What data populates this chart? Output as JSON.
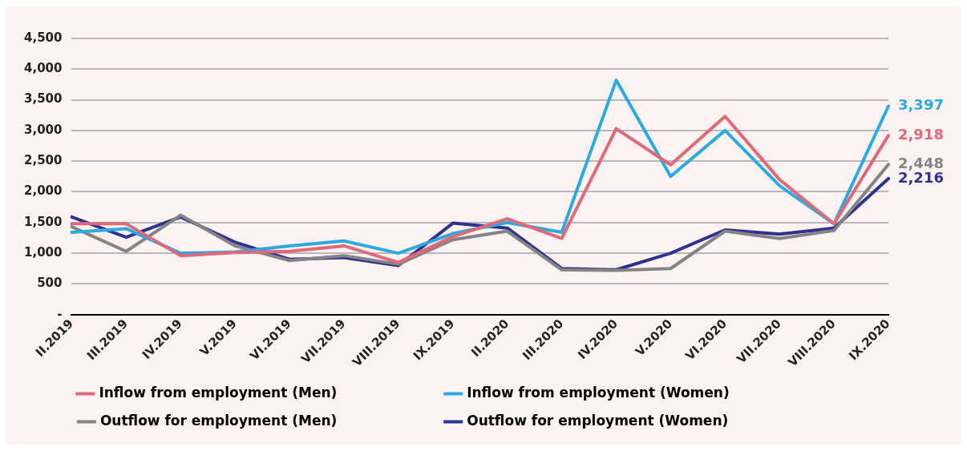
{
  "chart_data": {
    "type": "line",
    "categories": [
      "II.2019",
      "III.2019",
      "IV.2019",
      "V.2019",
      "VI.2019",
      "VII.2019",
      "VIII.2019",
      "IX.2019",
      "II.2020",
      "III.2020",
      "IV.2020",
      "V.2020",
      "VI.2020",
      "VII.2020",
      "VIII.2020",
      "IX.2020"
    ],
    "series": [
      {
        "name": "Inflow from employment (Men)",
        "color": "#e06878",
        "values": [
          1480,
          1480,
          960,
          1010,
          1030,
          1120,
          850,
          1270,
          1560,
          1240,
          3030,
          2440,
          3230,
          2200,
          1480,
          2918
        ],
        "value_labels": [
          null,
          null,
          null,
          null,
          null,
          null,
          null,
          null,
          null,
          null,
          null,
          null,
          null,
          null,
          null,
          "2,918"
        ]
      },
      {
        "name": "Inflow from employment (Women)",
        "color": "#29abe2",
        "values": [
          1340,
          1400,
          1000,
          1020,
          1120,
          1200,
          1000,
          1320,
          1500,
          1340,
          3820,
          2250,
          3000,
          2100,
          1480,
          3397
        ],
        "value_labels": [
          null,
          null,
          null,
          null,
          null,
          null,
          null,
          null,
          null,
          null,
          null,
          null,
          null,
          null,
          null,
          "3,397"
        ]
      },
      {
        "name": "Outflow for employment (Men)",
        "color": "#848484",
        "values": [
          1430,
          1030,
          1620,
          1120,
          880,
          960,
          820,
          1220,
          1360,
          730,
          720,
          750,
          1360,
          1240,
          1370,
          2448
        ],
        "value_labels": [
          null,
          null,
          null,
          null,
          null,
          null,
          null,
          null,
          null,
          null,
          null,
          null,
          null,
          null,
          null,
          "2,448"
        ]
      },
      {
        "name": "Outflow for employment (Women)",
        "color": "#2e3192",
        "values": [
          1590,
          1260,
          1590,
          1180,
          900,
          930,
          800,
          1490,
          1410,
          750,
          730,
          1000,
          1380,
          1310,
          1410,
          2216
        ],
        "value_labels": [
          null,
          null,
          null,
          null,
          null,
          null,
          null,
          null,
          null,
          null,
          null,
          null,
          null,
          null,
          null,
          "2,216"
        ]
      }
    ],
    "ylim": [
      0,
      4500
    ],
    "yticks": [
      {
        "value": 0,
        "label": "-"
      },
      500,
      {
        "value": 1000,
        "label": "1,000"
      },
      {
        "value": 1500,
        "label": "1,500"
      },
      {
        "value": 2000,
        "label": "2,000"
      },
      {
        "value": 2500,
        "label": "2,500"
      },
      {
        "value": 3000,
        "label": "3,000"
      },
      {
        "value": 3500,
        "label": "3,500"
      },
      {
        "value": 4000,
        "label": "4,000"
      },
      {
        "value": 4500,
        "label": "4,500"
      }
    ],
    "grid": "y",
    "legend": "bottom",
    "marker": "none",
    "line_style": "solid"
  }
}
